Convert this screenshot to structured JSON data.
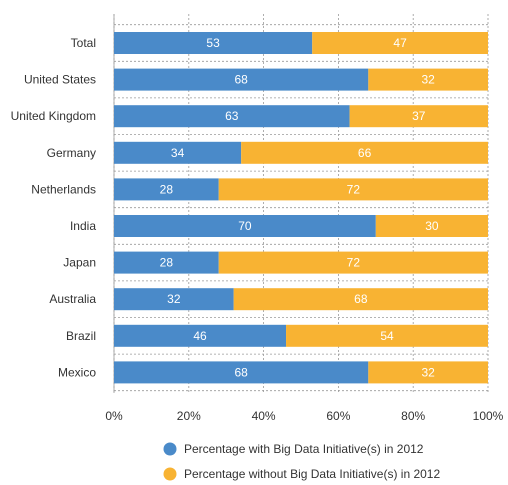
{
  "chart_data": {
    "type": "bar",
    "orientation": "horizontal",
    "stacked": true,
    "categories": [
      "Total",
      "United States",
      "United Kingdom",
      "Germany",
      "Netherlands",
      "India",
      "Japan",
      "Australia",
      "Brazil",
      "Mexico"
    ],
    "series": [
      {
        "name": "Percentage with Big Data Initiative(s) in 2012",
        "color": "#4a8ac9",
        "values": [
          53,
          68,
          63,
          34,
          28,
          70,
          28,
          32,
          46,
          68
        ]
      },
      {
        "name": "Percentage without Big Data Initiative(s) in 2012",
        "color": "#f8b333",
        "values": [
          47,
          32,
          37,
          66,
          72,
          30,
          72,
          68,
          54,
          32
        ]
      }
    ],
    "xlim": [
      0,
      100
    ],
    "xticks": [
      "0%",
      "20%",
      "40%",
      "60%",
      "80%",
      "100%"
    ],
    "grid": "dashed",
    "legend_position": "bottom"
  }
}
